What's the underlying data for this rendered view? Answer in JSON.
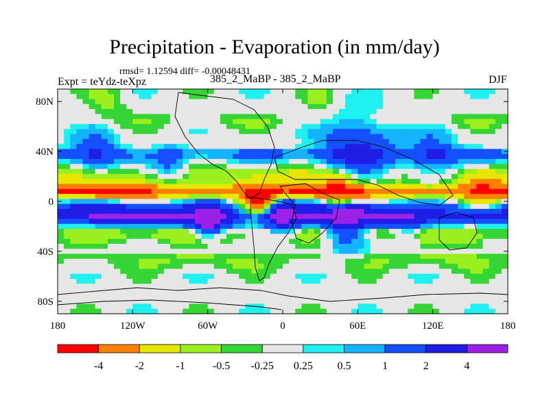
{
  "chart_data": {
    "type": "heatmap",
    "title": "Precipitation - Evaporation (in mm/day)",
    "stats_line": "rmsd= 1.12594 diff= -0.00048431",
    "left_label": "Expt = teYdz-teXpz",
    "center_label": "385_2_MaBP - 385_2_MaBP",
    "right_label": "DJF",
    "x_ticks": [
      "180",
      "120W",
      "60W",
      "0",
      "60E",
      "120E",
      "180"
    ],
    "y_ticks": [
      "80N",
      "40N",
      "0",
      "40S",
      "80S"
    ],
    "x_tick_values": [
      -180,
      -120,
      -60,
      0,
      60,
      120,
      180
    ],
    "y_tick_values": [
      80,
      40,
      0,
      -40,
      -80
    ],
    "xlim": [
      -180,
      180
    ],
    "ylim": [
      -90,
      90
    ],
    "colorbar_labels": [
      "-4",
      "-2",
      "-1",
      "-0.5",
      "-0.25",
      "0.25",
      "0.5",
      "1",
      "2",
      "4"
    ],
    "colorbar_colors": [
      "#ff0000",
      "#ff8000",
      "#e6e600",
      "#9aef1e",
      "#34d534",
      "#e6e6e6",
      "#20efef",
      "#14b4ff",
      "#1450ff",
      "#1e1ee6",
      "#9b22e6"
    ],
    "band_profile": [
      {
        "lat": 90,
        "v": 0.0
      },
      {
        "lat": 75,
        "v": 0.0
      },
      {
        "lat": 65,
        "v": -0.4
      },
      {
        "lat": 55,
        "v": 0.0
      },
      {
        "lat": 45,
        "v": 0.0
      },
      {
        "lat": 38,
        "v": 1.3
      },
      {
        "lat": 25,
        "v": -0.8
      },
      {
        "lat": 15,
        "v": -1.5
      },
      {
        "lat": 8,
        "v": -4.5
      },
      {
        "lat": 4,
        "v": -2.2
      },
      {
        "lat": 0,
        "v": 0.3
      },
      {
        "lat": -5,
        "v": 2.5
      },
      {
        "lat": -12,
        "v": 4.5
      },
      {
        "lat": -18,
        "v": 1.5
      },
      {
        "lat": -25,
        "v": -1.0
      },
      {
        "lat": -32,
        "v": -0.5
      },
      {
        "lat": -40,
        "v": 0.0
      },
      {
        "lat": -45,
        "v": -0.6
      },
      {
        "lat": -52,
        "v": -0.4
      },
      {
        "lat": -60,
        "v": 0.0
      },
      {
        "lat": -90,
        "v": 0.0
      }
    ],
    "anomalies": [
      {
        "lon": -150,
        "lat": 38,
        "v": 1.6,
        "r": 18
      },
      {
        "lon": -90,
        "lat": 30,
        "v": 1.2,
        "r": 14
      },
      {
        "lon": 60,
        "lat": 40,
        "v": 2.2,
        "r": 28
      },
      {
        "lon": 120,
        "lat": 35,
        "v": 1.6,
        "r": 20
      },
      {
        "lon": -20,
        "lat": 0,
        "v": -4.5,
        "r": 12
      },
      {
        "lon": 45,
        "lat": 8,
        "v": -2.5,
        "r": 14
      },
      {
        "lon": 160,
        "lat": 8,
        "v": -2.2,
        "r": 14
      },
      {
        "lon": -60,
        "lat": -15,
        "v": 4.8,
        "r": 12
      },
      {
        "lon": 0,
        "lat": -12,
        "v": 3.5,
        "r": 12
      },
      {
        "lon": 50,
        "lat": -20,
        "v": 2.5,
        "r": 16
      },
      {
        "lon": 100,
        "lat": -25,
        "v": 1.2,
        "r": 12
      },
      {
        "lon": 150,
        "lat": -30,
        "v": -0.6,
        "r": 14
      },
      {
        "lon": -140,
        "lat": 80,
        "v": -0.6,
        "r": 15
      },
      {
        "lon": 30,
        "lat": 80,
        "v": -0.5,
        "r": 15
      }
    ]
  }
}
